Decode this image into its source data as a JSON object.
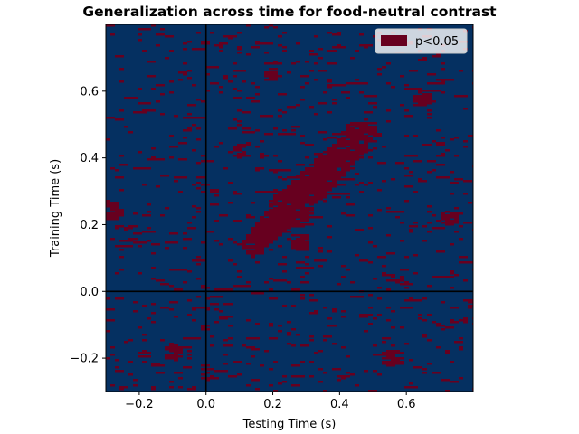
{
  "chart_data": {
    "type": "heatmap",
    "title": "Generalization across time for food-neutral contrast",
    "xlabel": "Testing Time (s)",
    "ylabel": "Training Time (s)",
    "xlim": [
      -0.3,
      0.8
    ],
    "ylim": [
      -0.3,
      0.8
    ],
    "xticks": [
      -0.2,
      0.0,
      0.2,
      0.4,
      0.6
    ],
    "xtick_labels": [
      "−0.2",
      "0.0",
      "0.2",
      "0.4",
      "0.6"
    ],
    "yticks": [
      -0.2,
      0.0,
      0.2,
      0.4,
      0.6
    ],
    "ytick_labels": [
      "−0.2",
      "0.0",
      "0.2",
      "0.4",
      "0.6"
    ],
    "reference_lines": {
      "x": 0.0,
      "y": 0.0
    },
    "legend": {
      "position": "top-right",
      "entries": [
        {
          "label": "p<0.05",
          "color": "#67001f"
        }
      ]
    },
    "colors": {
      "non_significant": "#053061",
      "significant": "#67001f"
    },
    "significant_regions": [
      {
        "kind": "diagonal_band",
        "from": [
          0.12,
          0.12
        ],
        "to": [
          0.5,
          0.5
        ],
        "half_width": 0.035
      },
      {
        "kind": "blob",
        "center": [
          0.25,
          0.25
        ],
        "radius": 0.06
      },
      {
        "kind": "blob",
        "center": [
          0.45,
          0.47
        ],
        "radius": 0.04
      },
      {
        "kind": "blob",
        "center": [
          0.28,
          0.15
        ],
        "radius": 0.03
      },
      {
        "kind": "blob",
        "center": [
          -0.28,
          0.24
        ],
        "radius": 0.03
      },
      {
        "kind": "blob",
        "center": [
          0.65,
          0.58
        ],
        "radius": 0.025
      },
      {
        "kind": "blob",
        "center": [
          0.73,
          0.22
        ],
        "radius": 0.025
      },
      {
        "kind": "blob",
        "center": [
          0.1,
          0.42
        ],
        "radius": 0.02
      },
      {
        "kind": "blob",
        "center": [
          -0.1,
          -0.18
        ],
        "radius": 0.025
      },
      {
        "kind": "blob",
        "center": [
          0.55,
          -0.2
        ],
        "radius": 0.025
      },
      {
        "kind": "blob",
        "center": [
          0.0,
          -0.25
        ],
        "radius": 0.02
      },
      {
        "kind": "blob",
        "center": [
          0.2,
          0.65
        ],
        "radius": 0.02
      }
    ],
    "noise_fraction": 0.055
  }
}
